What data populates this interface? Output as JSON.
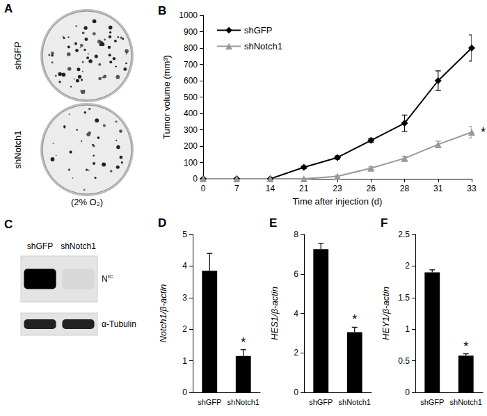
{
  "panel_a": {
    "title": "A",
    "rows": [
      "shGFP",
      "shNotch1"
    ],
    "caption": "(2% O₂)"
  },
  "panel_c": {
    "title": "C",
    "lanes": [
      "shGFP",
      "shNotch1"
    ],
    "bands": [
      {
        "label": "N",
        "label_superscript": "IC",
        "intensity": [
          1,
          0.05
        ]
      },
      {
        "label": "α-Tubulin",
        "intensity": [
          0.85,
          0.85
        ]
      }
    ]
  },
  "chart_data": [
    {
      "title": "B",
      "type": "line",
      "x_label": "Time after injection (d)",
      "y_label": "Tumor volume (mm³)",
      "categories": [
        "0",
        "7",
        "14",
        "21",
        "23",
        "26",
        "28",
        "31",
        "33"
      ],
      "series": [
        {
          "name": "shGFP",
          "color": "#000000",
          "marker": "diamond",
          "values": [
            0,
            0,
            0,
            70,
            130,
            235,
            340,
            600,
            800
          ],
          "errors": [
            0,
            0,
            0,
            8,
            10,
            12,
            50,
            60,
            80
          ]
        },
        {
          "name": "shNotch1",
          "color": "#999999",
          "marker": "triangle",
          "values": [
            0,
            0,
            0,
            0,
            15,
            65,
            125,
            210,
            285
          ],
          "errors": [
            0,
            0,
            0,
            0,
            5,
            8,
            12,
            20,
            35
          ]
        }
      ],
      "ylim": [
        0,
        1000
      ],
      "yticks": [
        0,
        100,
        200,
        300,
        400,
        500,
        600,
        700,
        800,
        900,
        1000
      ],
      "grid": false,
      "legend": "upper left",
      "annotations": [
        {
          "series": "shNotch1",
          "x": "33",
          "text": "*"
        }
      ]
    },
    {
      "title": "D",
      "type": "bar",
      "y_label": "Notch1/β-actin",
      "categories": [
        "shGFP",
        "shNotch1"
      ],
      "values": [
        3.85,
        1.15
      ],
      "errors": [
        0.55,
        0.2
      ],
      "color": "#000000",
      "ylim": [
        0,
        5
      ],
      "yticks": [
        0,
        1,
        2,
        3,
        4,
        5
      ],
      "grid": false,
      "annotations": [
        {
          "category": "shNotch1",
          "text": "*"
        }
      ]
    },
    {
      "title": "E",
      "type": "bar",
      "y_label": "HES1/β-actin",
      "categories": [
        "shGFP",
        "shNotch1"
      ],
      "values": [
        7.25,
        3.05
      ],
      "errors": [
        0.3,
        0.25
      ],
      "color": "#000000",
      "ylim": [
        0,
        8
      ],
      "yticks": [
        0,
        2,
        4,
        6,
        8
      ],
      "grid": false,
      "annotations": [
        {
          "category": "shNotch1",
          "text": "*"
        }
      ]
    },
    {
      "title": "F",
      "type": "bar",
      "y_label": "HEY1/β-actin",
      "categories": [
        "shGFP",
        "shNotch1"
      ],
      "values": [
        1.9,
        0.58
      ],
      "errors": [
        0.04,
        0.03
      ],
      "color": "#000000",
      "ylim": [
        0,
        2.5
      ],
      "yticks": [
        0,
        0.5,
        1,
        1.5,
        2,
        2.5
      ],
      "grid": false,
      "annotations": [
        {
          "category": "shNotch1",
          "text": "*"
        }
      ]
    }
  ]
}
